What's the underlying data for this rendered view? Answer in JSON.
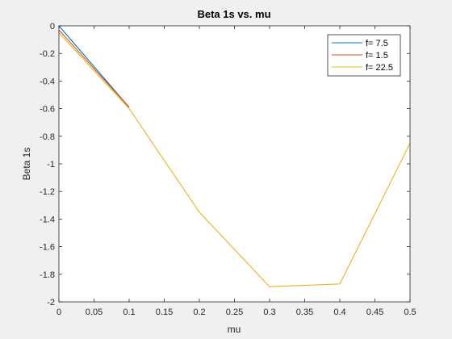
{
  "chart_data": {
    "type": "line",
    "title": "Beta 1s vs. mu",
    "xlabel": "mu",
    "ylabel": "Beta 1s",
    "xlim": [
      0,
      0.5
    ],
    "ylim": [
      -2,
      0
    ],
    "xticks": [
      0,
      0.05,
      0.1,
      0.15,
      0.2,
      0.25,
      0.3,
      0.35,
      0.4,
      0.45,
      0.5
    ],
    "xtick_labels": [
      "0",
      "0.05",
      "0.1",
      "0.15",
      "0.2",
      "0.25",
      "0.3",
      "0.35",
      "0.4",
      "0.45",
      "0.5"
    ],
    "yticks": [
      0,
      -0.2,
      -0.4,
      -0.6,
      -0.8,
      -1,
      -1.2,
      -1.4,
      -1.6,
      -1.8,
      -2
    ],
    "ytick_labels": [
      "0",
      "-0.2",
      "-0.4",
      "-0.6",
      "-0.8",
      "-1",
      "-1.2",
      "-1.4",
      "-1.6",
      "-1.8",
      "-2"
    ],
    "grid": false,
    "legend_position": "top-right",
    "series": [
      {
        "name": "f= 7.5",
        "color": "#0072BD",
        "x": [
          0,
          0.1
        ],
        "y": [
          0,
          -0.59
        ]
      },
      {
        "name": "f= 1.5",
        "color": "#D95319",
        "x": [
          0,
          0.1
        ],
        "y": [
          -0.03,
          -0.59
        ]
      },
      {
        "name": "f= 22.5",
        "color": "#EDB120",
        "x": [
          0,
          0.1,
          0.2,
          0.3,
          0.4,
          0.5
        ],
        "y": [
          -0.05,
          -0.6,
          -1.35,
          -1.89,
          -1.87,
          -0.85
        ]
      }
    ]
  }
}
